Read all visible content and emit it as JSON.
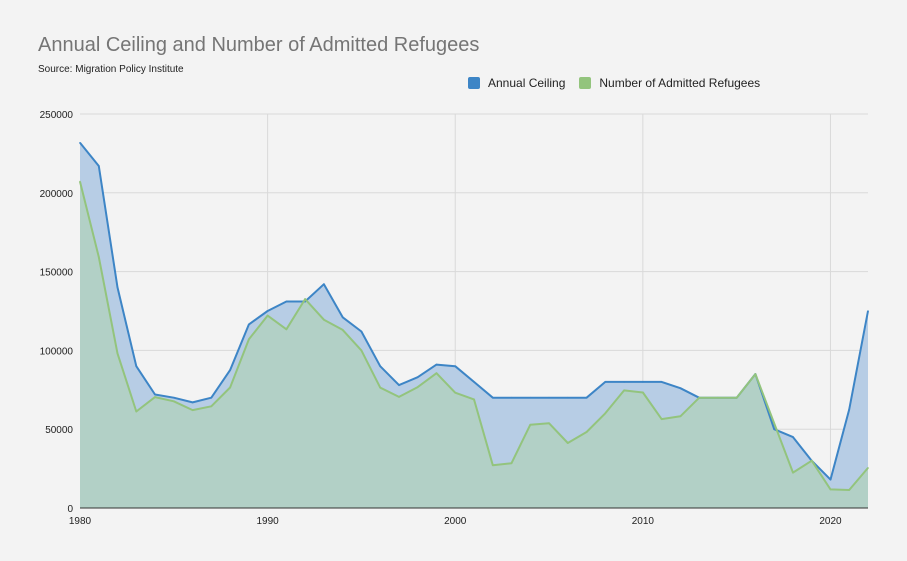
{
  "chart_data": {
    "type": "area",
    "title": "Annual Ceiling and Number of Admitted Refugees",
    "subtitle": "Source: Migration Policy Institute",
    "xlabel": "",
    "ylabel": "",
    "xlim": [
      1980,
      2022
    ],
    "ylim": [
      0,
      250000
    ],
    "x_ticks": [
      1980,
      1990,
      2000,
      2010,
      2020
    ],
    "y_ticks": [
      0,
      50000,
      100000,
      150000,
      200000,
      250000
    ],
    "grid": true,
    "legend_position": "top",
    "x": [
      1980,
      1981,
      1982,
      1983,
      1984,
      1985,
      1986,
      1987,
      1988,
      1989,
      1990,
      1991,
      1992,
      1993,
      1994,
      1995,
      1996,
      1997,
      1998,
      1999,
      2000,
      2001,
      2002,
      2003,
      2004,
      2005,
      2006,
      2007,
      2008,
      2009,
      2010,
      2011,
      2012,
      2013,
      2014,
      2015,
      2016,
      2017,
      2018,
      2019,
      2020,
      2021,
      2022
    ],
    "series": [
      {
        "name": "Annual Ceiling",
        "color": "#3d85c6",
        "fill": "#b7cde5",
        "values": [
          231700,
          217000,
          140000,
          90000,
          72000,
          70000,
          67000,
          70000,
          87500,
          116500,
          125000,
          131000,
          131000,
          142000,
          121000,
          112000,
          90000,
          78000,
          83000,
          91000,
          90000,
          80000,
          70000,
          70000,
          70000,
          70000,
          70000,
          70000,
          80000,
          80000,
          80000,
          80000,
          76000,
          70000,
          70000,
          70000,
          85000,
          50000,
          45000,
          30000,
          18000,
          62500,
          125000
        ]
      },
      {
        "name": "Number of Admitted Refugees",
        "color": "#93c47d",
        "fill": "#b2d0c6",
        "values": [
          207116,
          159252,
          98096,
          61218,
          70393,
          67704,
          62146,
          64528,
          76483,
          107070,
          122066,
          113389,
          132531,
          119448,
          112981,
          99974,
          76403,
          70488,
          76712,
          85525,
          73147,
          68925,
          27131,
          28422,
          52868,
          53813,
          41223,
          48218,
          60107,
          74602,
          73293,
          56424,
          58179,
          69909,
          69975,
          69920,
          84988,
          53716,
          22491,
          30000,
          11814,
          11411,
          25465
        ]
      }
    ]
  }
}
